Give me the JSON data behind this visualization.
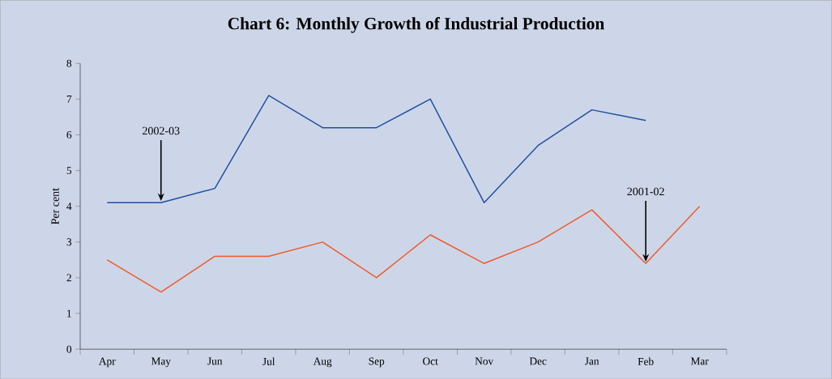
{
  "chart_data": {
    "type": "line",
    "title": "Chart 6: Monthly Growth of Industrial Production",
    "ylabel": "Per cent",
    "categories": [
      "Apr",
      "May",
      "Jun",
      "Jul",
      "Aug",
      "Sep",
      "Oct",
      "Nov",
      "Dec",
      "Jan",
      "Feb",
      "Mar"
    ],
    "series": [
      {
        "color": "#1f4fa0",
        "values": [
          4.1,
          4.1,
          4.5,
          7.1,
          6.2,
          6.2,
          7.0,
          4.1,
          5.7,
          6.7,
          6.4,
          null
        ]
      },
      {
        "color": "#f05a28",
        "values": [
          2.5,
          1.6,
          2.6,
          2.6,
          3.0,
          2.0,
          3.2,
          2.4,
          3.0,
          3.9,
          2.4,
          4.0
        ]
      }
    ],
    "ylim": [
      0,
      8
    ],
    "yticks": [
      0,
      1,
      2,
      3,
      4,
      5,
      6,
      7,
      8
    ],
    "annotations": [
      {
        "text": "2002-03",
        "x": "May",
        "y": 4.1
      },
      {
        "text": "2001-02",
        "x": "Feb",
        "y": 2.4
      }
    ]
  }
}
